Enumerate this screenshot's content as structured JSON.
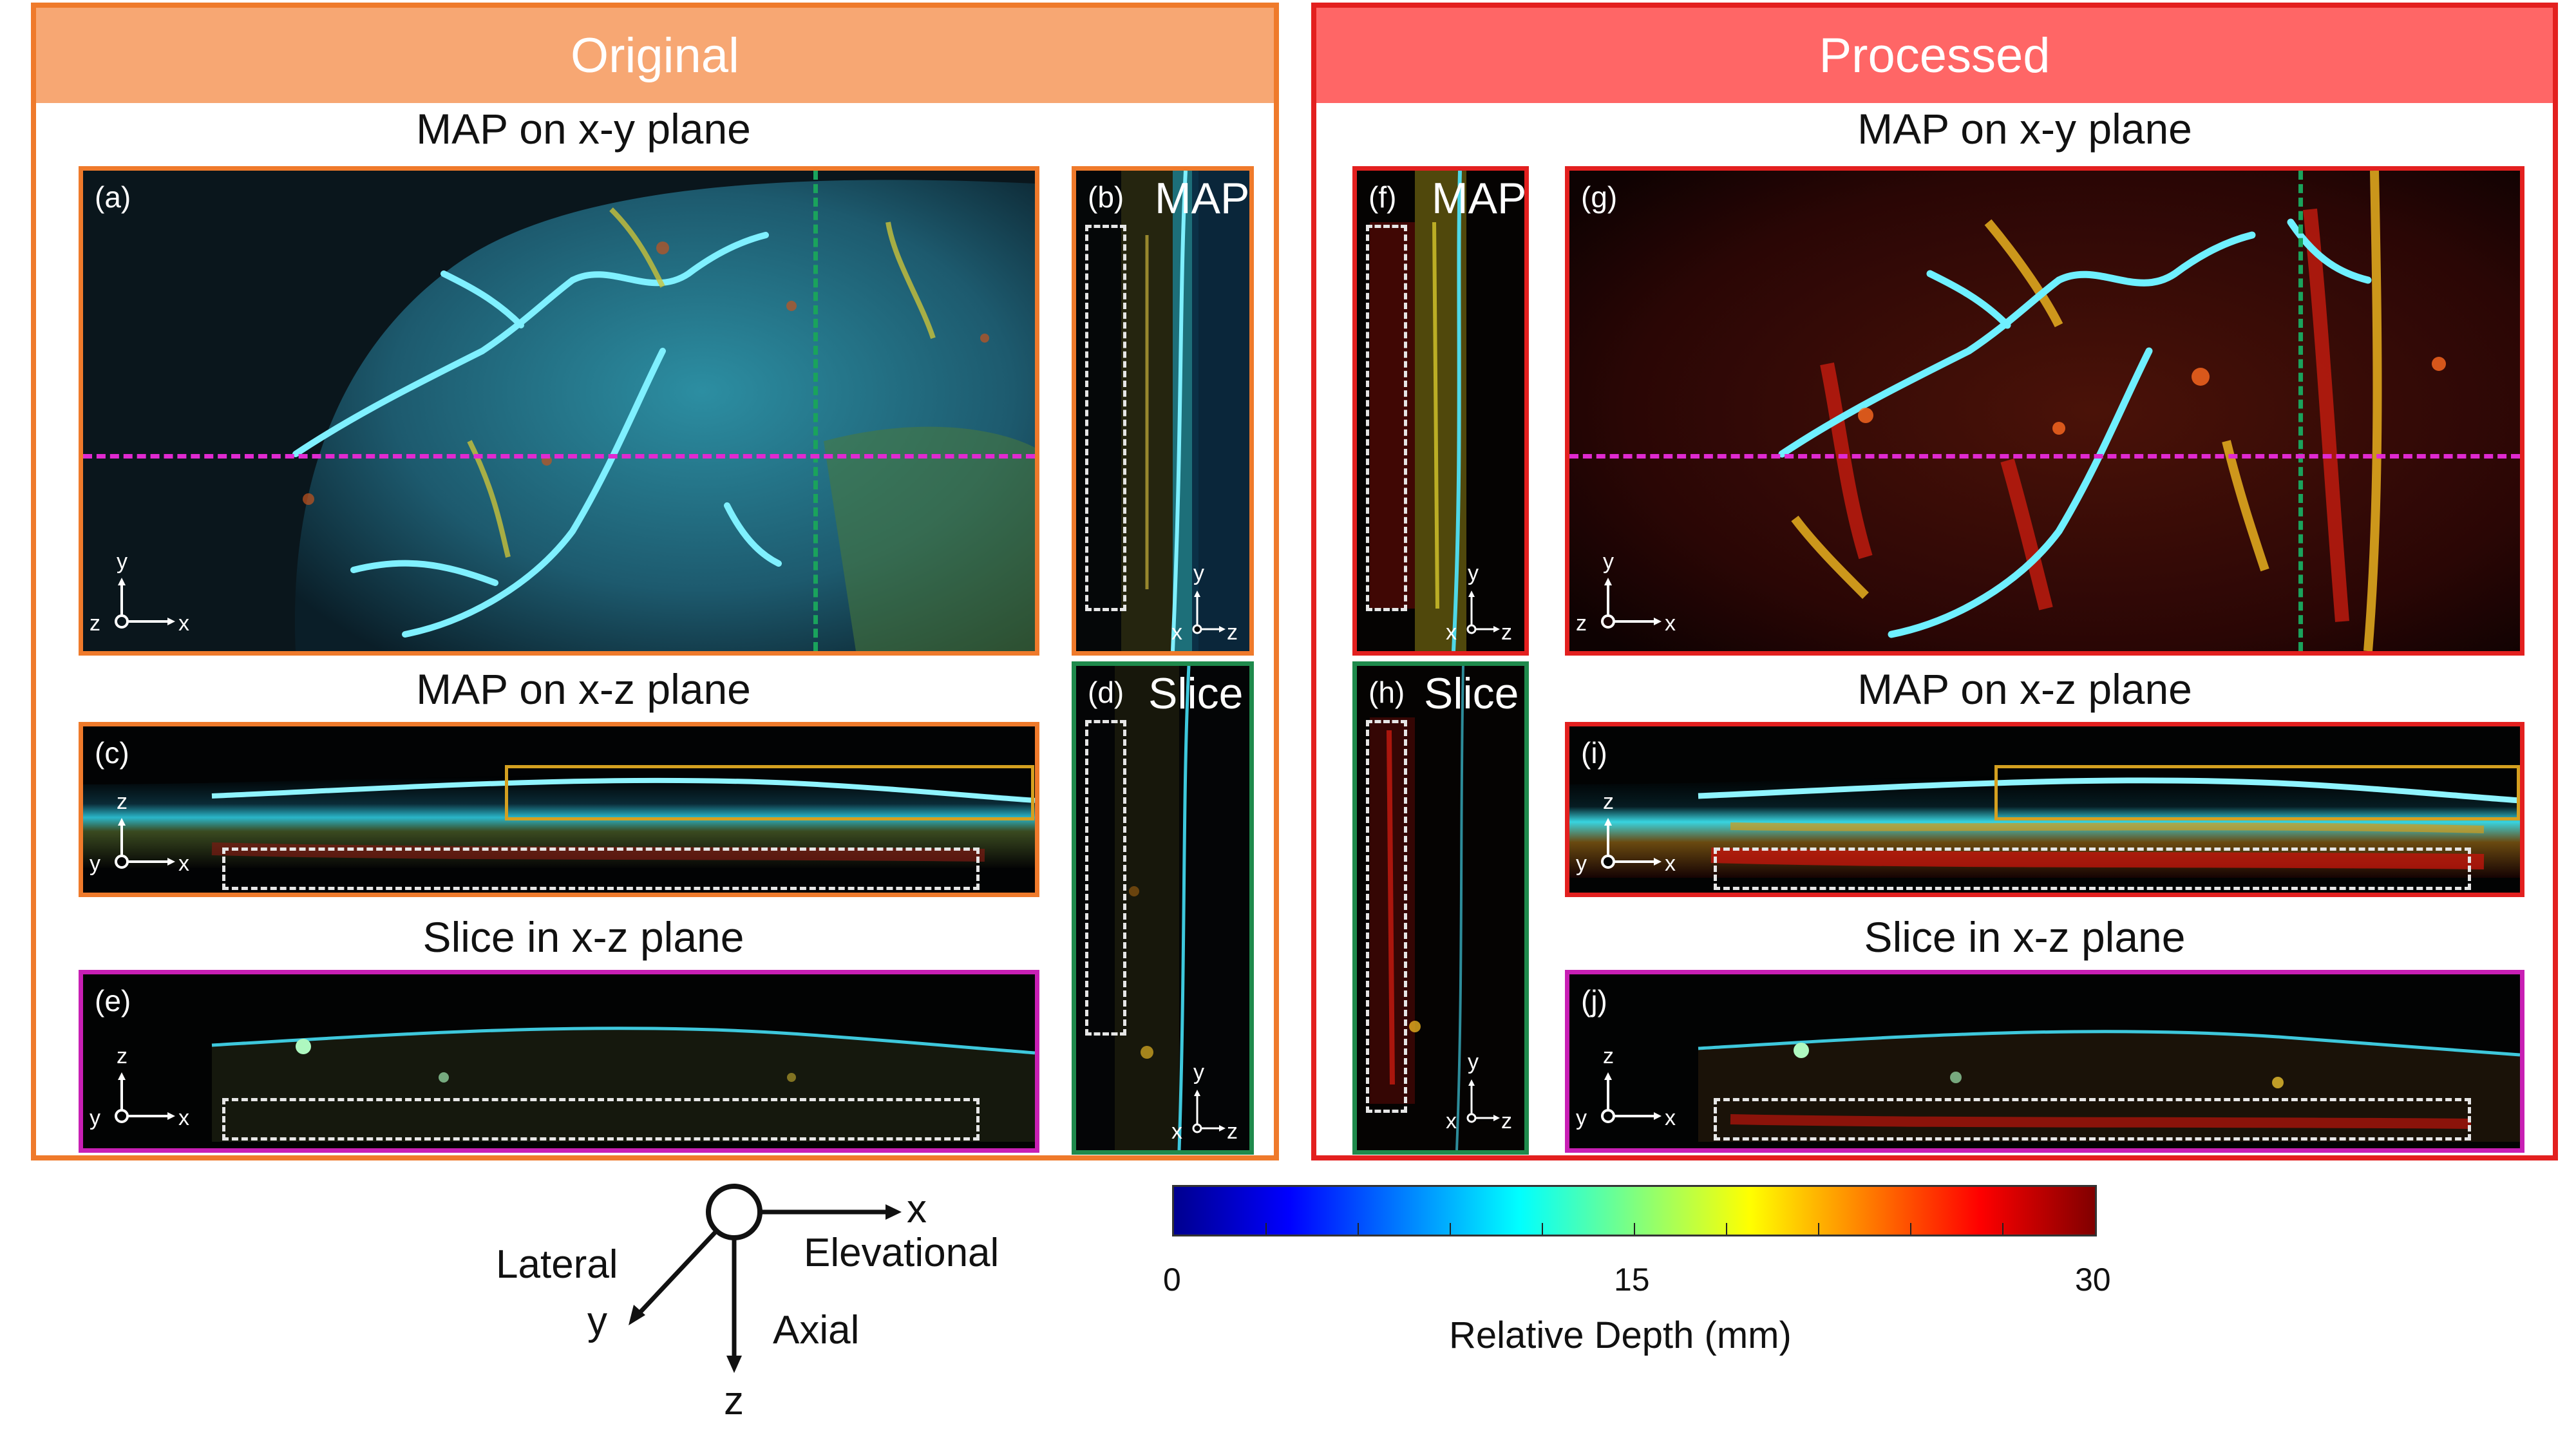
{
  "groups": {
    "original": {
      "title": "Original",
      "border_color": "#ef7a2b",
      "header_color": "#f7a773"
    },
    "processed": {
      "title": "Processed",
      "border_color": "#e3201f",
      "header_color": "#ff6666"
    }
  },
  "section_titles": {
    "map_xy": "MAP on x-y plane",
    "map_xz": "MAP on x-z plane",
    "slice_xz": "Slice in x-z plane"
  },
  "panels": {
    "a": {
      "label": "(a)"
    },
    "b": {
      "label": "(b)",
      "word": "MAP"
    },
    "c": {
      "label": "(c)"
    },
    "d": {
      "label": "(d)",
      "word": "Slice"
    },
    "e": {
      "label": "(e)"
    },
    "f": {
      "label": "(f)",
      "word": "MAP"
    },
    "g": {
      "label": "(g)"
    },
    "h": {
      "label": "(h)",
      "word": "Slice"
    },
    "i": {
      "label": "(i)"
    },
    "j": {
      "label": "(j)"
    }
  },
  "axis_letters": {
    "x": "x",
    "y": "y",
    "z": "z"
  },
  "orientation_legend": {
    "x": "x",
    "y": "y",
    "z": "z",
    "lateral": "Lateral",
    "elevational": "Elevational",
    "axial": "Axial"
  },
  "colorbar": {
    "min_label": "0",
    "mid_label": "15",
    "max_label": "30",
    "title": "Relative Depth (mm)",
    "range": [
      0,
      30
    ],
    "colormap": "jet"
  },
  "colors": {
    "orange_frame": "#ef7a2b",
    "red_frame": "#e3201f",
    "green_frame": "#1f8a4c",
    "magenta_frame": "#c81fb4",
    "green_dash": "#1aa35c",
    "magenta_dash": "#e02ad0",
    "yellow_box": "#d4a020"
  }
}
